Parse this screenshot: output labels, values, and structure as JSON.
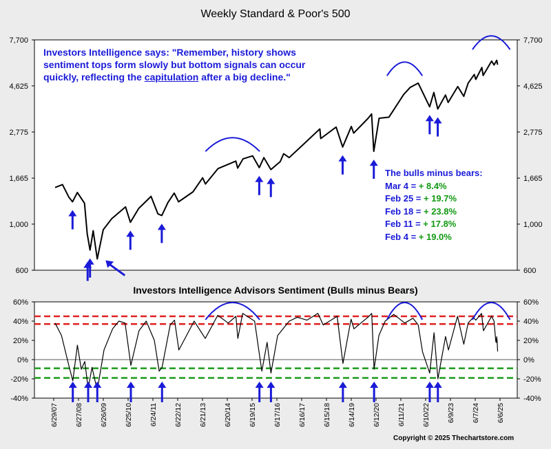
{
  "chart_data": [
    {
      "type": "line",
      "title": "Weekly Standard & Poor's 500",
      "yscale": "log",
      "ylim": [
        600,
        7700
      ],
      "yticks": [
        "7,700",
        "4,625",
        "2,775",
        "1,665",
        "1,000",
        "600"
      ],
      "ytick_values": [
        7700,
        4625,
        2775,
        1665,
        1000,
        600
      ],
      "x": [
        "2007-06-29",
        "2007-10-15",
        "2008-01-15",
        "2008-03-10",
        "2008-05-19",
        "2008-09-01",
        "2008-10-10",
        "2008-11-20",
        "2009-01-05",
        "2009-03-06",
        "2009-06-01",
        "2009-10-01",
        "2010-04-23",
        "2010-07-02",
        "2010-11-01",
        "2011-04-29",
        "2011-08-08",
        "2011-10-03",
        "2012-01-01",
        "2012-04-01",
        "2012-06-04",
        "2012-12-31",
        "2013-05-21",
        "2013-07-01",
        "2013-12-31",
        "2014-09-18",
        "2014-10-15",
        "2014-12-31",
        "2015-05-21",
        "2015-08-25",
        "2015-11-01",
        "2016-02-11",
        "2016-06-27",
        "2016-08-15",
        "2016-11-04",
        "2017-06-01",
        "2018-01-26",
        "2018-02-08",
        "2018-09-20",
        "2018-12-24",
        "2019-04-30",
        "2019-06-03",
        "2019-12-31",
        "2020-02-19",
        "2020-03-23",
        "2020-06-08",
        "2020-10-30",
        "2021-06-01",
        "2021-09-02",
        "2021-12-31",
        "2022-06-16",
        "2022-08-16",
        "2022-10-12",
        "2023-02-02",
        "2023-03-13",
        "2023-07-31",
        "2023-10-27",
        "2023-12-29",
        "2024-03-28",
        "2024-04-19",
        "2024-07-16",
        "2024-08-05",
        "2024-12-06",
        "2025-01-10",
        "2025-02-19",
        "2025-03-04"
      ],
      "y": [
        1500,
        1550,
        1350,
        1280,
        1420,
        1260,
        900,
        750,
        930,
        680,
        940,
        1060,
        1210,
        1020,
        1190,
        1360,
        1120,
        1100,
        1270,
        1410,
        1280,
        1430,
        1670,
        1560,
        1850,
        2010,
        1860,
        2060,
        2130,
        1870,
        2090,
        1830,
        2000,
        2180,
        2090,
        2420,
        2870,
        2580,
        2930,
        2350,
        2950,
        2740,
        3230,
        3390,
        2240,
        3230,
        3270,
        4200,
        4540,
        4770,
        3670,
        4300,
        3580,
        4180,
        3850,
        4590,
        4120,
        4770,
        5250,
        4970,
        5670,
        5190,
        6090,
        5830,
        6140,
        5850
      ],
      "x_tick_labels": [
        "6/29/07",
        "6/27/08",
        "6/26/09",
        "6/25/10",
        "6/24/11",
        "6/22/12",
        "6/21/13",
        "6/20/14",
        "6/19/15",
        "6/17/16",
        "6/16/17",
        "6/15/18",
        "6/14/19",
        "6/12/20",
        "6/11/21",
        "6/10/22",
        "6/9/23",
        "6/7/24",
        "6/6/25"
      ],
      "annotation": "Investors Intelligence says: \"Remember, history shows sentiment tops form slowly but bottom signals can occur quickly, reflecting the capitulation after a big decline.\"",
      "arrow_dates": [
        "2008-03-10",
        "2008-11-20",
        "2009-03-06",
        "2010-07-02",
        "2011-10-03",
        "2015-08-25",
        "2016-02-11",
        "2018-12-24",
        "2020-03-23",
        "2022-06-16",
        "2022-10-12"
      ],
      "diagonal_arrow_date": "2009-03-06",
      "top_arcs": [
        [
          "2013-07-01",
          "2015-09-01"
        ],
        [
          "2020-10-01",
          "2022-03-01"
        ],
        [
          "2024-03-01",
          "2025-09-01"
        ]
      ]
    },
    {
      "type": "line",
      "title": "Investors Intelligence Advisors Sentiment (Bulls minus Bears)",
      "ylim": [
        -40,
        60
      ],
      "yticks": [
        "60%",
        "40%",
        "20%",
        "0%",
        "-20%",
        "-40%"
      ],
      "ytick_values": [
        60,
        40,
        20,
        0,
        -20,
        -40
      ],
      "x": [
        "2007-06-29",
        "2007-10-01",
        "2008-01-15",
        "2008-03-14",
        "2008-05-20",
        "2008-07-15",
        "2008-09-05",
        "2008-10-24",
        "2008-12-19",
        "2009-03-06",
        "2009-06-12",
        "2009-10-16",
        "2010-01-15",
        "2010-04-16",
        "2010-07-09",
        "2010-11-05",
        "2011-02-18",
        "2011-06-17",
        "2011-08-26",
        "2011-10-07",
        "2012-02-03",
        "2012-04-06",
        "2012-06-08",
        "2013-01-18",
        "2013-06-28",
        "2013-12-27",
        "2014-05-30",
        "2014-09-19",
        "2014-10-17",
        "2014-12-26",
        "2015-06-19",
        "2015-08-28",
        "2015-10-02",
        "2015-12-18",
        "2016-02-12",
        "2016-05-20",
        "2016-11-04",
        "2017-03-03",
        "2017-07-21",
        "2017-12-29",
        "2018-03-16",
        "2018-06-15",
        "2018-10-05",
        "2018-12-28",
        "2019-04-26",
        "2019-06-07",
        "2019-12-27",
        "2020-02-21",
        "2020-03-27",
        "2020-06-05",
        "2020-09-04",
        "2021-01-08",
        "2021-06-18",
        "2021-10-15",
        "2021-12-31",
        "2022-03-04",
        "2022-06-17",
        "2022-08-19",
        "2022-10-14",
        "2023-02-03",
        "2023-03-17",
        "2023-07-28",
        "2023-10-27",
        "2023-12-29",
        "2024-03-15",
        "2024-04-19",
        "2024-07-12",
        "2024-08-09",
        "2024-12-06",
        "2025-01-10",
        "2025-02-04",
        "2025-02-11",
        "2025-02-18",
        "2025-02-25",
        "2025-03-04"
      ],
      "y": [
        38,
        25,
        -6,
        -22,
        15,
        -10,
        -2,
        -30,
        -8,
        -32,
        10,
        32,
        40,
        38,
        -6,
        30,
        40,
        20,
        -12,
        -8,
        36,
        41,
        10,
        40,
        22,
        46,
        38,
        45,
        22,
        48,
        40,
        5,
        -12,
        18,
        -14,
        25,
        40,
        44,
        41,
        48,
        36,
        40,
        45,
        -4,
        42,
        32,
        44,
        48,
        -10,
        25,
        40,
        47,
        38,
        43,
        36,
        8,
        -14,
        28,
        -20,
        24,
        10,
        45,
        16,
        38,
        44,
        41,
        48,
        30,
        45,
        40,
        19,
        17.8,
        23.8,
        19.7,
        8.4
      ],
      "reference_lines": [
        {
          "value": 45,
          "color": "#e02020"
        },
        {
          "value": 37,
          "color": "#e02020"
        },
        {
          "value": -9,
          "color": "#1a9a1a"
        },
        {
          "value": -19,
          "color": "#1a9a1a"
        }
      ],
      "arrow_dates": [
        "2008-03-14",
        "2008-10-24",
        "2009-03-06",
        "2010-07-09",
        "2011-10-07",
        "2015-08-28",
        "2016-02-12",
        "2018-12-28",
        "2020-03-27",
        "2022-06-17",
        "2022-10-14"
      ],
      "top_arcs": [
        [
          "2013-07-01",
          "2015-09-01"
        ],
        [
          "2020-10-01",
          "2022-03-01"
        ],
        [
          "2024-03-01",
          "2025-09-01"
        ]
      ]
    }
  ],
  "bulls_minus_bears": {
    "header": "The bulls minus bears:",
    "items": [
      {
        "date": "Mar 4 = ",
        "value": "+ 8.4%"
      },
      {
        "date": "Feb 25 = ",
        "value": "+ 19.7%"
      },
      {
        "date": "Feb 18 = ",
        "value": "+ 23.8%"
      },
      {
        "date": "Feb 11 = ",
        "value": "+ 17.8%"
      },
      {
        "date": "Feb 4 = ",
        "value": "+ 19.0%"
      }
    ]
  },
  "quote_parts": {
    "before": "Investors Intelligence says: \"Remember, history shows sentiment tops form slowly but bottom signals can occur quickly, reflecting the ",
    "underlined": "capitulation",
    "after": " after a big decline.\""
  },
  "copyright": "Copyright © 2025 Thechartstore.com",
  "colors": {
    "price_line": "#000000",
    "arrow": "#1a1ad8",
    "arc": "#1a1ad8",
    "background": "#ececec",
    "plot_bg": "#ffffff"
  }
}
